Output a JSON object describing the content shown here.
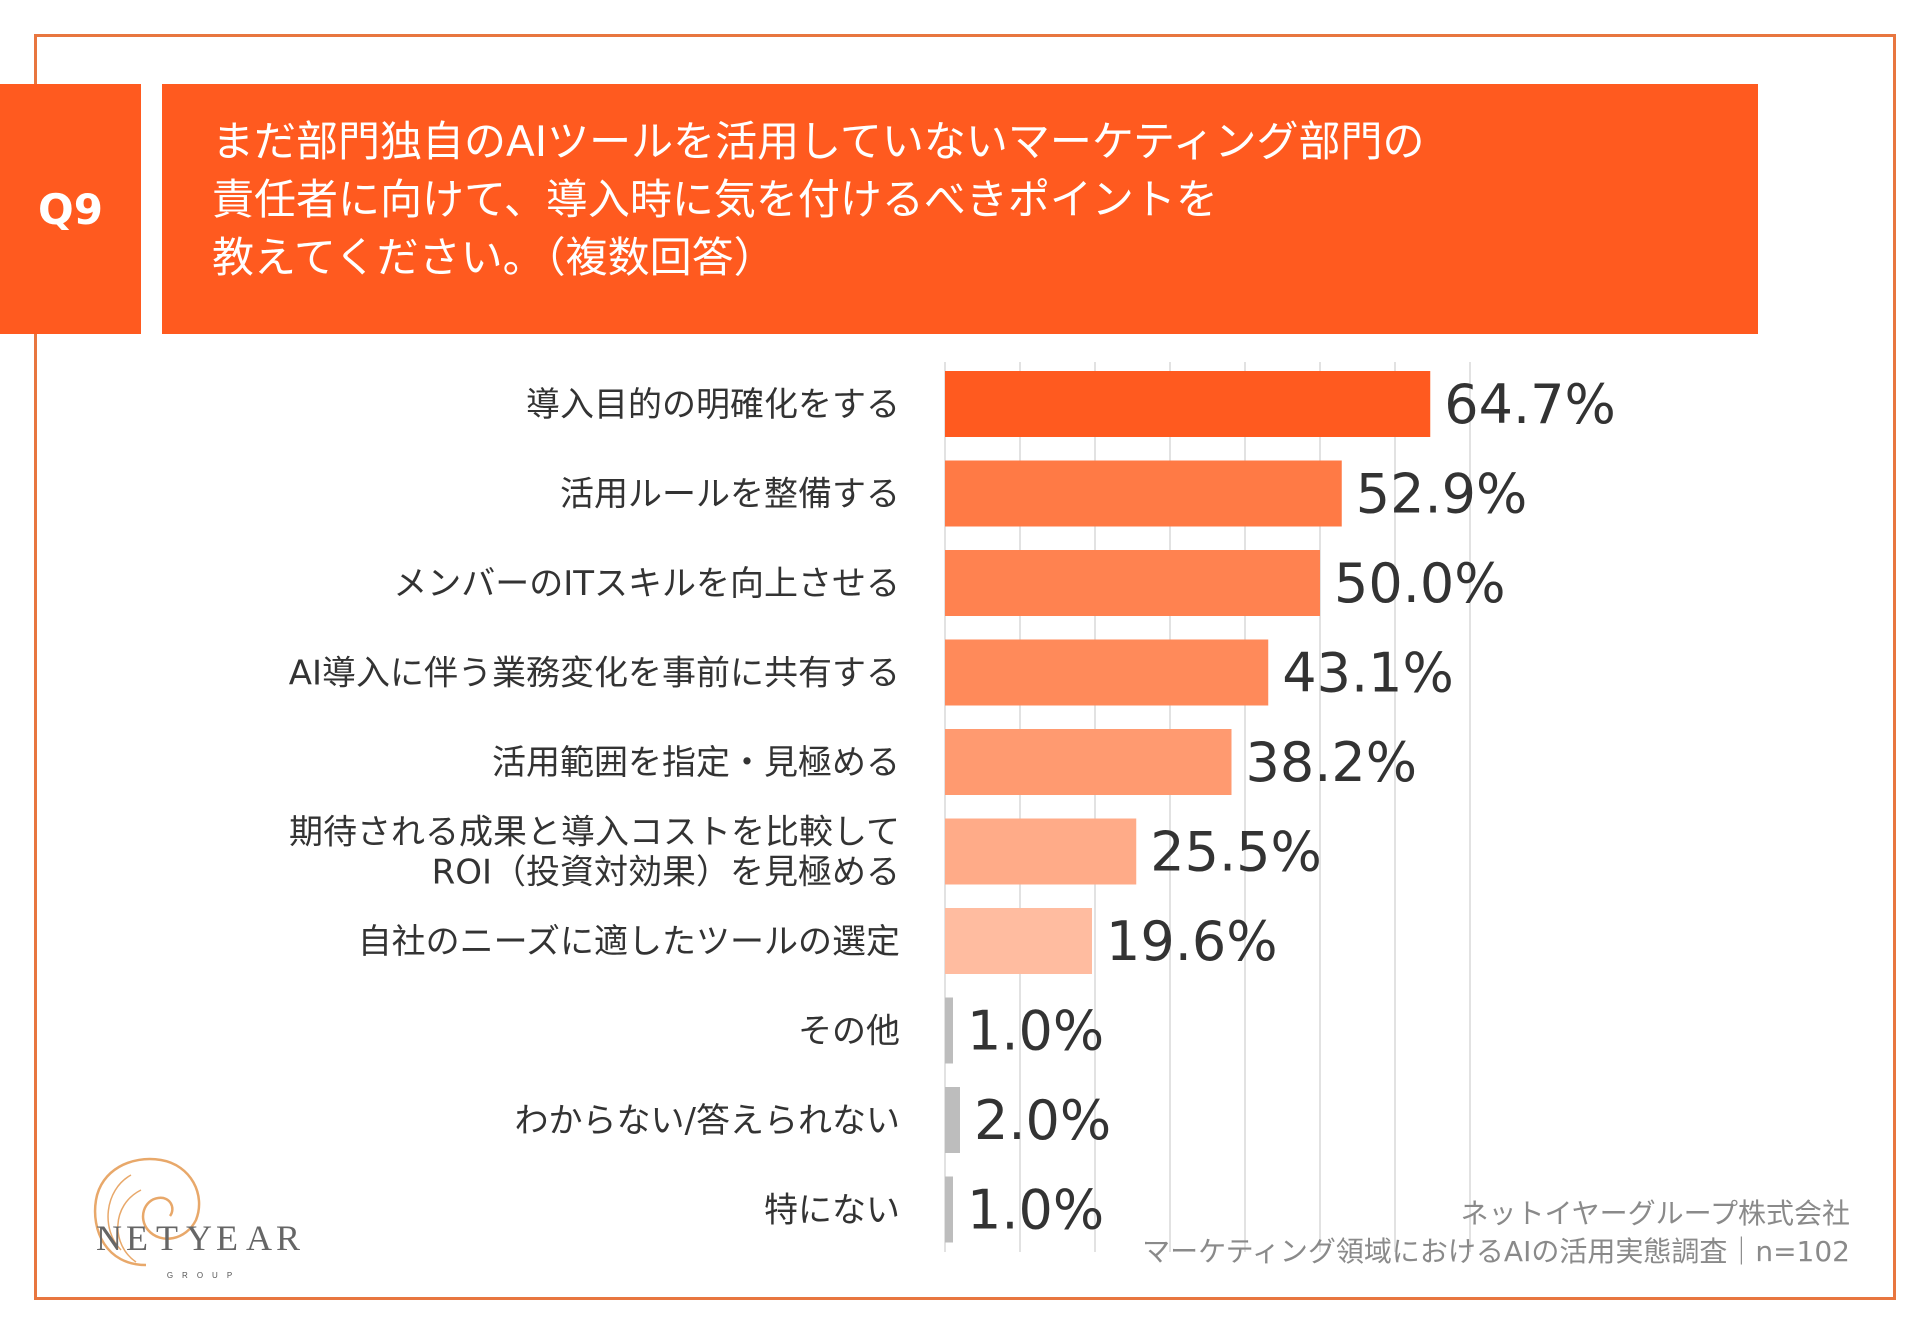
{
  "colors": {
    "border": "#e8763f",
    "header_fill": "#ff5a1f",
    "grid": "#d9d9d9",
    "gray_bar": "#bdbdbd",
    "logo": "#e8a86a"
  },
  "question": {
    "number": "Q9",
    "text": "まだ部門独自のAIツールを活用していないマーケティング部門の\n責任者に向けて、導入時に気を付けるべきポイントを\n教えてください。（複数回答）"
  },
  "chart_data": {
    "type": "bar",
    "orientation": "horizontal",
    "xlim": [
      0,
      70
    ],
    "grid": true,
    "categories": [
      "導入目的の明確化をする",
      "活用ルールを整備する",
      "メンバーのITスキルを向上させる",
      "AI導入に伴う業務変化を事前に共有する",
      "活用範囲を指定・見極める",
      "期待される成果と導入コストを比較して\nROI（投資対効果）を見極める",
      "自社のニーズに適したツールの選定",
      "その他",
      "わからない/答えられない",
      "特にない"
    ],
    "values": [
      64.7,
      52.9,
      50.0,
      43.1,
      38.2,
      25.5,
      19.6,
      1.0,
      2.0,
      1.0
    ],
    "value_labels": [
      "64.7%",
      "52.9%",
      "50.0%",
      "43.1%",
      "38.2%",
      "25.5%",
      "19.6%",
      "1.0%",
      "2.0%",
      "1.0%"
    ],
    "bar_colors": [
      "#ff5a1f",
      "#ff7a45",
      "#ff8250",
      "#ff8a5a",
      "#ff9a70",
      "#ffab88",
      "#ffbca0",
      "#bdbdbd",
      "#bdbdbd",
      "#bdbdbd"
    ]
  },
  "footer": {
    "company": "ネットイヤーグループ株式会社",
    "survey": "マーケティング領域におけるAIの活用実態調査｜n=102"
  },
  "logo": {
    "letters": [
      "N",
      "E",
      "T",
      "Y",
      "E",
      "A",
      "R"
    ],
    "sub": "GROUP"
  }
}
